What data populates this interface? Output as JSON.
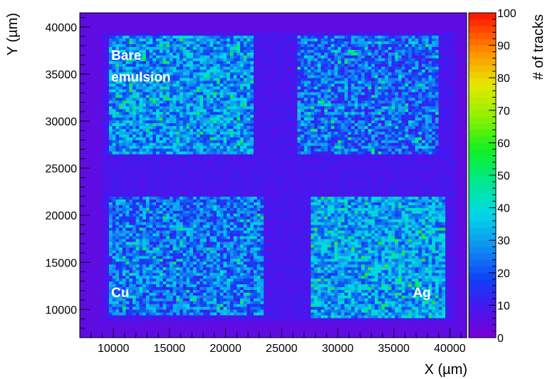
{
  "chart_data": {
    "type": "heatmap",
    "xlabel": "X (µm)",
    "ylabel": "Y (µm)",
    "zlabel": "# of tracks",
    "xlim": [
      7000,
      41500
    ],
    "ylim": [
      7000,
      41500
    ],
    "zlim": [
      0,
      100
    ],
    "x_ticks": [
      10000,
      15000,
      20000,
      25000,
      30000,
      35000,
      40000
    ],
    "y_ticks": [
      10000,
      15000,
      20000,
      25000,
      30000,
      35000,
      40000
    ],
    "z_ticks": [
      0,
      10,
      20,
      30,
      40,
      50,
      60,
      70,
      80,
      90,
      100
    ],
    "grid": false,
    "colorbar_position": "right",
    "regions": [
      {
        "label": "Bare emulsion",
        "x": [
          9500,
          22500
        ],
        "y": [
          26500,
          39000
        ],
        "mean_tracks": 28
      },
      {
        "label": "",
        "x": [
          26500,
          39000
        ],
        "y": [
          26500,
          39000
        ],
        "mean_tracks": 22
      },
      {
        "label": "Cu",
        "x": [
          9500,
          23500
        ],
        "y": [
          9500,
          22000
        ],
        "mean_tracks": 24
      },
      {
        "label": "Ag",
        "x": [
          27500,
          39500
        ],
        "y": [
          9000,
          22000
        ],
        "mean_tracks": 30
      }
    ],
    "background_tracks": 9,
    "frame_tracks": 5,
    "annotations": [
      {
        "text": "Bare",
        "x": 9800,
        "y": 36500
      },
      {
        "text": "emulsion",
        "x": 9800,
        "y": 34200
      },
      {
        "text": "Cu",
        "x": 9800,
        "y": 11300
      },
      {
        "text": "Ag",
        "x": 36700,
        "y": 11300
      }
    ]
  }
}
